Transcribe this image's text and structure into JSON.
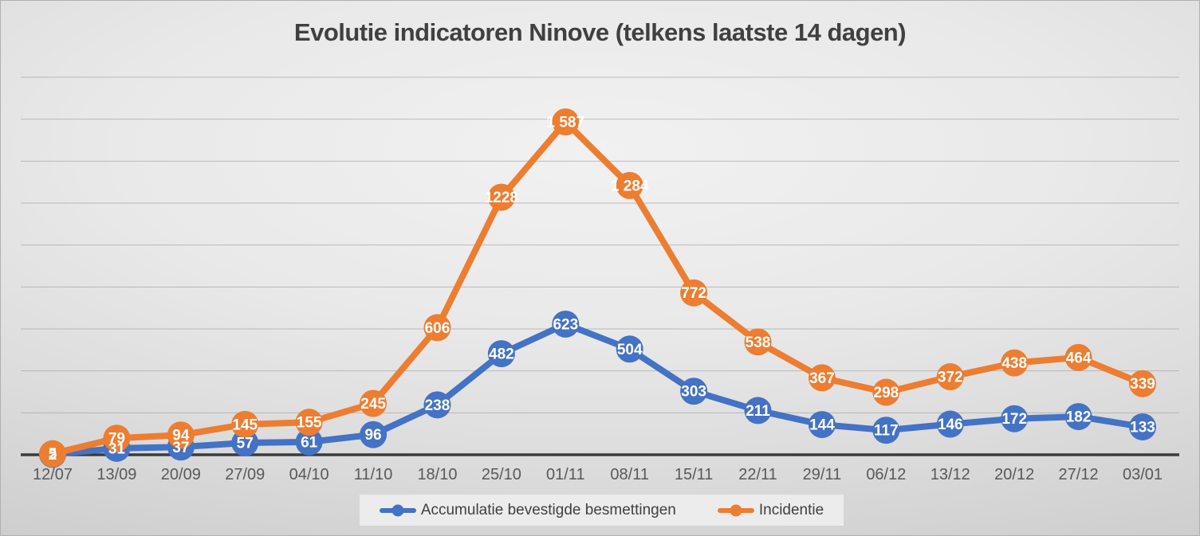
{
  "title": "Evolutie indicatoren Ninove (telkens laatste 14 dagen)",
  "chart_data": {
    "type": "line",
    "title": "Evolutie indicatoren Ninove (telkens laatste 14 dagen)",
    "categories": [
      "12/07",
      "13/09",
      "20/09",
      "27/09",
      "04/10",
      "11/10",
      "18/10",
      "25/10",
      "01/11",
      "08/11",
      "15/11",
      "22/11",
      "29/11",
      "06/12",
      "13/12",
      "20/12",
      "27/12",
      "03/01"
    ],
    "series": [
      {
        "name": "Accumulatie bevestigde besmettingen",
        "color": "#4472C4",
        "values": [
          2,
          31,
          37,
          57,
          61,
          96,
          238,
          482,
          623,
          504,
          303,
          211,
          144,
          117,
          146,
          172,
          182,
          133
        ],
        "labels": [
          "2",
          "31",
          "37",
          "57",
          "61",
          "96",
          "238",
          "482",
          "623",
          "504",
          "303",
          "211",
          "144",
          "117",
          "146",
          "172",
          "182",
          "133"
        ]
      },
      {
        "name": "Incidentie",
        "color": "#ED7D31",
        "values": [
          5,
          79,
          94,
          145,
          155,
          245,
          606,
          1228,
          1587,
          1284,
          772,
          538,
          367,
          298,
          372,
          438,
          464,
          339
        ],
        "labels": [
          "5",
          "79",
          "94",
          "145",
          "155",
          "245",
          "606",
          "1228",
          "1 587",
          "1 284",
          "772",
          "538",
          "367",
          "298",
          "372",
          "438",
          "464",
          "339"
        ]
      }
    ],
    "xlabel": "",
    "ylabel": "",
    "ylim": [
      0,
      1800
    ],
    "grid_step": 200,
    "grid": true,
    "y_axis_labels_visible": false,
    "legend_position": "bottom",
    "axis_color": "#3b3b3b",
    "gridline_color": "#a0a0a0",
    "tick_label_color": "#595959",
    "data_label_color": "#ffffff"
  }
}
